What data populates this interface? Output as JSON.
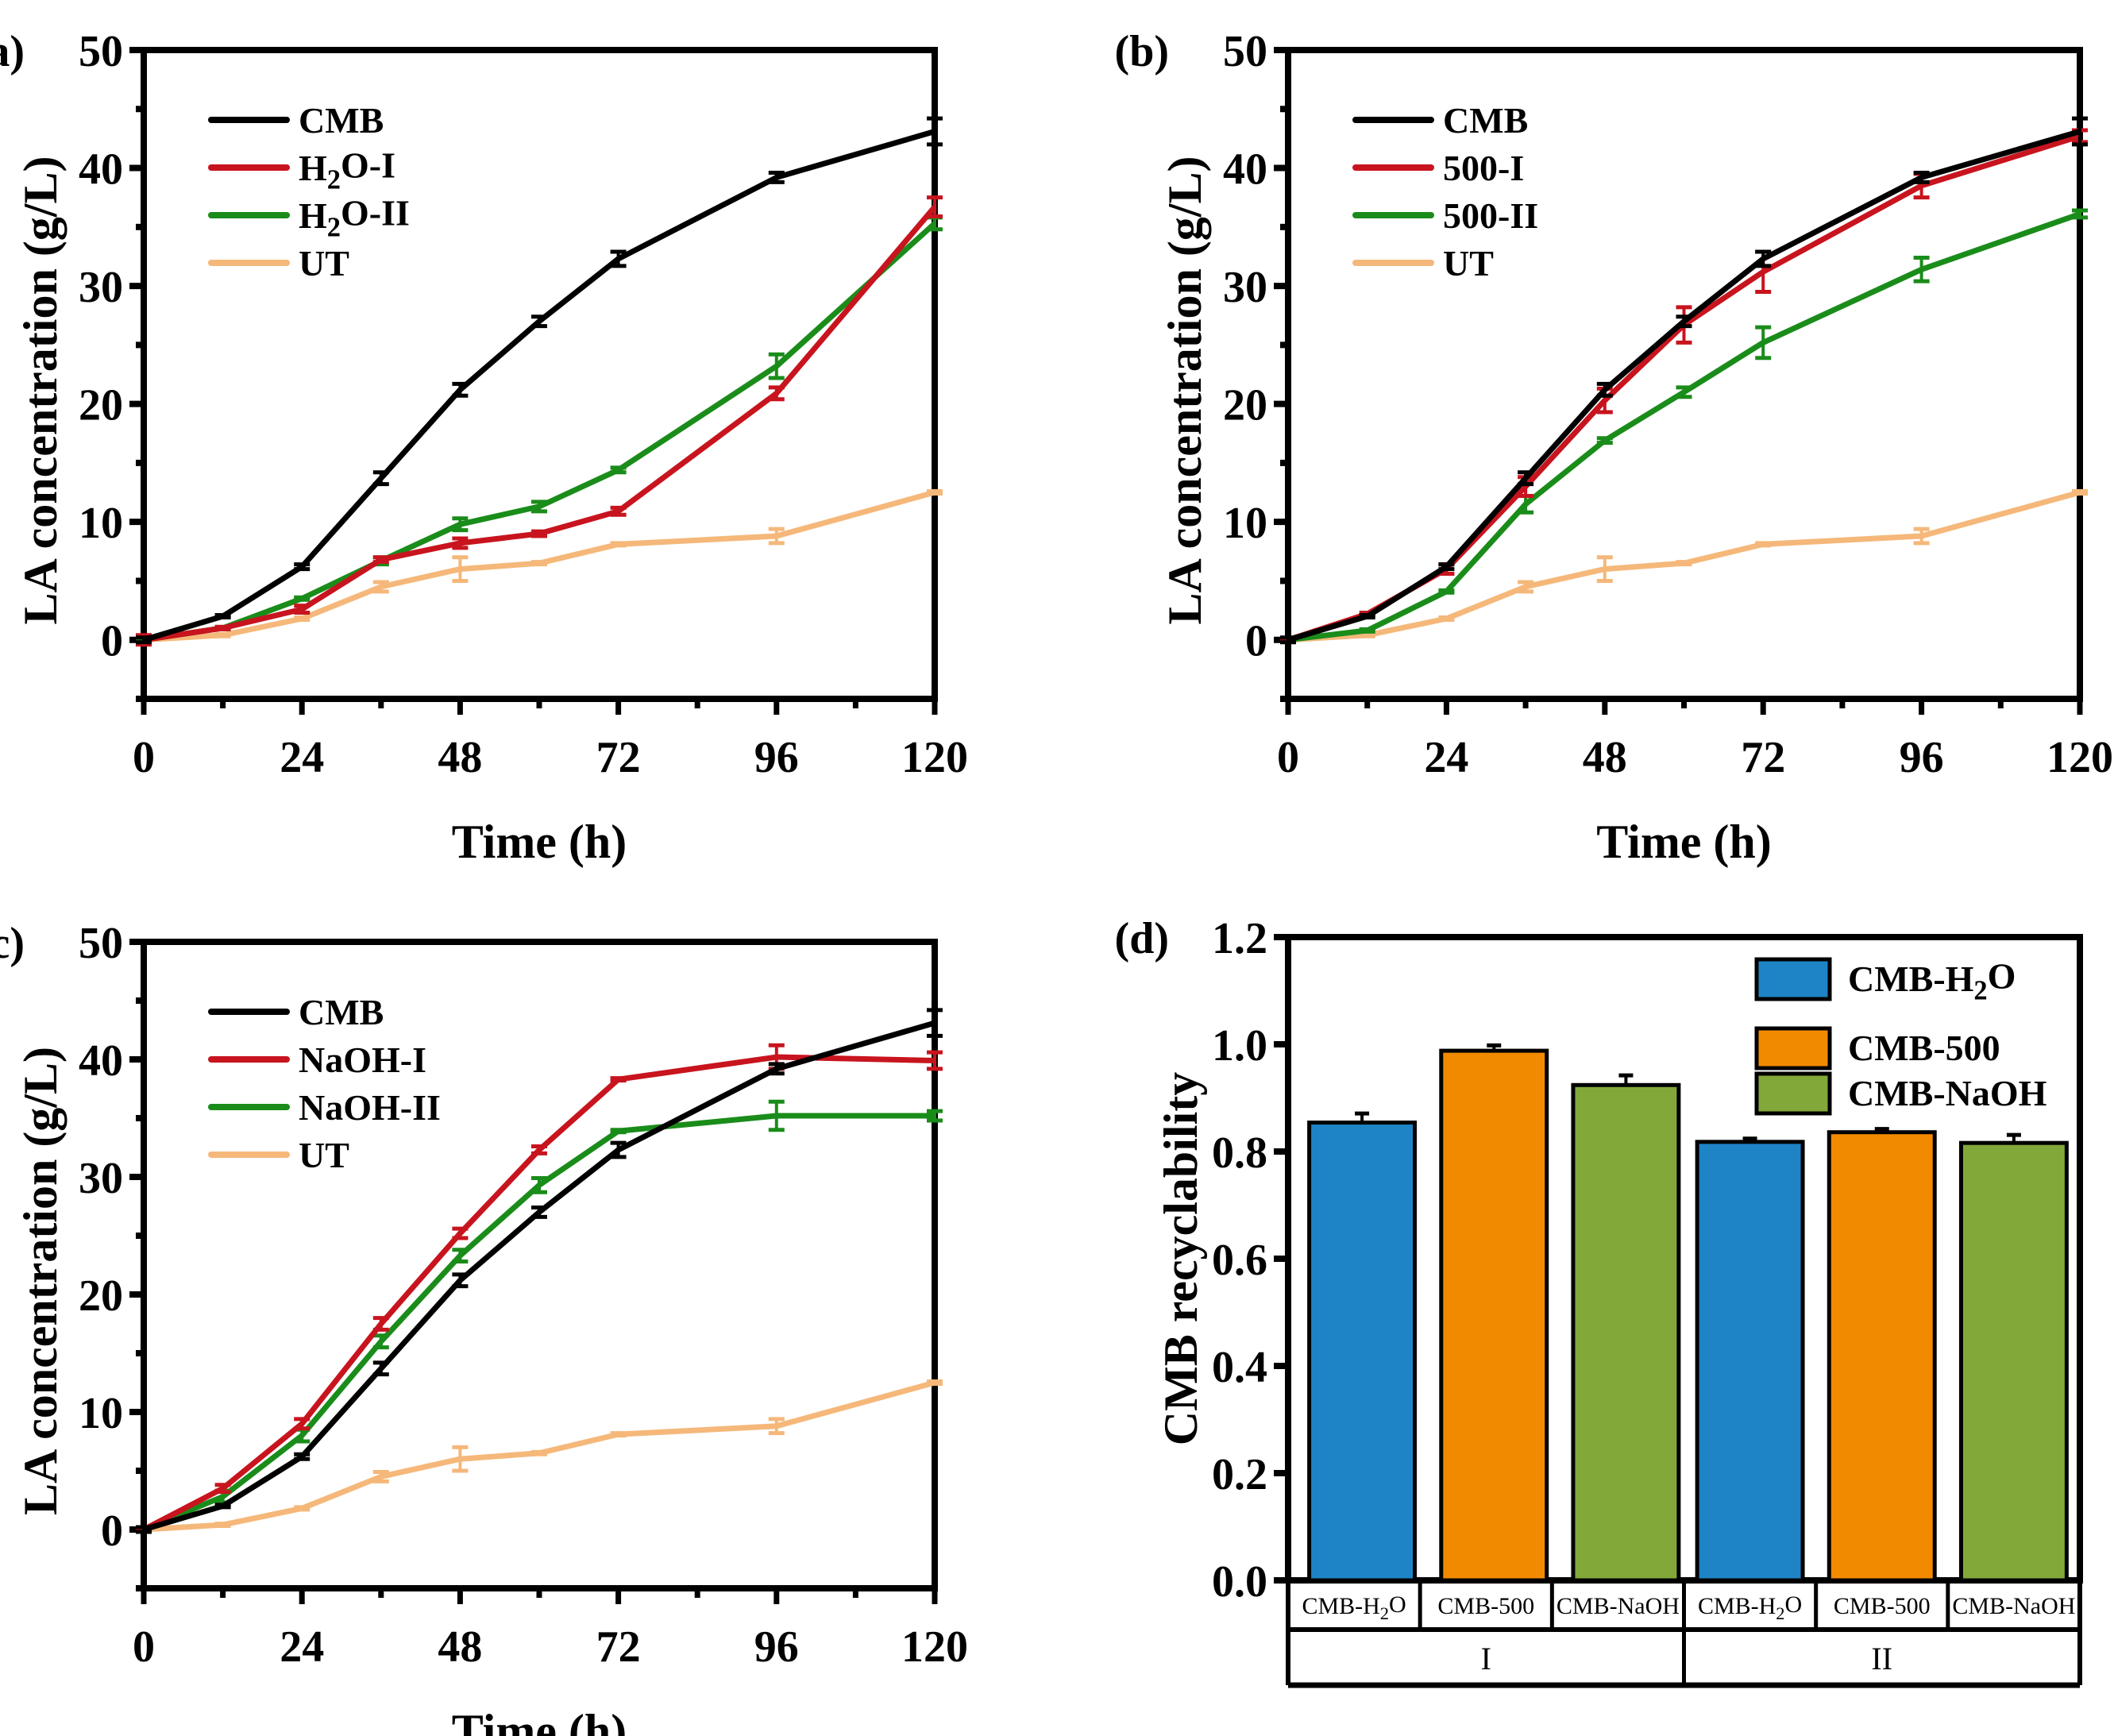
{
  "figure": {
    "panels": [
      "(a)",
      "(b)",
      "(c)",
      "(d)"
    ]
  },
  "chart_data": [
    {
      "id": "a",
      "panel_label": "(a)",
      "type": "line",
      "xlabel": "Time (h)",
      "ylabel": "LA concentration (g/L)",
      "xlim": [
        0,
        120
      ],
      "ylim": [
        -5,
        50
      ],
      "xticks": [
        0,
        24,
        48,
        72,
        96,
        120
      ],
      "yticks": [
        0,
        10,
        20,
        30,
        40,
        50
      ],
      "grid": false,
      "legend_position": "top-left",
      "x": [
        0,
        12,
        24,
        36,
        48,
        60,
        72,
        96,
        120
      ],
      "series": [
        {
          "name": "CMB",
          "color": "#000000",
          "values": [
            0,
            2.0,
            6.2,
            13.7,
            21.2,
            27.0,
            32.3,
            39.2,
            43.1
          ],
          "errors": [
            0.2,
            0.1,
            0.2,
            0.5,
            0.5,
            0.4,
            0.6,
            0.4,
            1.1
          ]
        },
        {
          "name": "H2O-I",
          "color": "#C8141E",
          "values": [
            0,
            1.0,
            2.6,
            6.8,
            8.2,
            9.0,
            10.9,
            20.9,
            36.7
          ],
          "errors": [
            0.4,
            0.1,
            0.3,
            0.2,
            0.4,
            0.2,
            0.3,
            0.5,
            0.8
          ]
        },
        {
          "name": "H2O-II",
          "color": "#1A8C1A",
          "values": [
            0,
            1.0,
            3.5,
            6.7,
            9.8,
            11.3,
            14.4,
            23.2,
            35.3
          ],
          "errors": [
            0.1,
            0.1,
            0.1,
            0.3,
            0.5,
            0.4,
            0.2,
            1.0,
            0.5
          ]
        },
        {
          "name": "UT",
          "color": "#F5B87A",
          "values": [
            0,
            0.4,
            1.8,
            4.5,
            6.0,
            6.5,
            8.1,
            8.8,
            12.5
          ],
          "errors": [
            0.1,
            0.1,
            0.1,
            0.4,
            1.0,
            0.1,
            0.1,
            0.6,
            0.1
          ]
        }
      ]
    },
    {
      "id": "b",
      "panel_label": "(b)",
      "type": "line",
      "xlabel": "Time (h)",
      "ylabel": "LA concentration (g/L)",
      "xlim": [
        0,
        120
      ],
      "ylim": [
        -5,
        50
      ],
      "xticks": [
        0,
        24,
        48,
        72,
        96,
        120
      ],
      "yticks": [
        0,
        10,
        20,
        30,
        40,
        50
      ],
      "grid": false,
      "legend_position": "top-left",
      "x": [
        0,
        12,
        24,
        36,
        48,
        60,
        72,
        96,
        120
      ],
      "series": [
        {
          "name": "CMB",
          "color": "#000000",
          "values": [
            0,
            2.0,
            6.2,
            13.7,
            21.2,
            27.0,
            32.3,
            39.2,
            43.1
          ],
          "errors": [
            0.2,
            0.1,
            0.2,
            0.5,
            0.5,
            0.4,
            0.6,
            0.4,
            1.1
          ]
        },
        {
          "name": "500-I",
          "color": "#C8141E",
          "values": [
            0,
            2.2,
            6.0,
            13.0,
            20.3,
            26.7,
            31.2,
            38.5,
            42.7
          ],
          "errors": [
            0.1,
            0.1,
            0.4,
            0.8,
            1.0,
            1.5,
            1.7,
            1.0,
            0.5
          ]
        },
        {
          "name": "500-II",
          "color": "#1A8C1A",
          "values": [
            0,
            0.8,
            4.1,
            11.5,
            16.9,
            21.0,
            25.2,
            31.4,
            36.1
          ],
          "errors": [
            0.1,
            0.1,
            0.1,
            0.7,
            0.2,
            0.4,
            1.3,
            1.0,
            0.3
          ]
        },
        {
          "name": "UT",
          "color": "#F5B87A",
          "values": [
            0,
            0.4,
            1.8,
            4.5,
            6.0,
            6.5,
            8.1,
            8.8,
            12.5
          ],
          "errors": [
            0.1,
            0.1,
            0.1,
            0.4,
            1.0,
            0.1,
            0.1,
            0.6,
            0.1
          ]
        }
      ]
    },
    {
      "id": "c",
      "panel_label": "(c)",
      "type": "line",
      "xlabel": "Time (h)",
      "ylabel": "LA concentration (g/L)",
      "xlim": [
        0,
        120
      ],
      "ylim": [
        -5,
        50
      ],
      "xticks": [
        0,
        24,
        48,
        72,
        96,
        120
      ],
      "yticks": [
        0,
        10,
        20,
        30,
        40,
        50
      ],
      "grid": false,
      "legend_position": "top-left",
      "x": [
        0,
        12,
        24,
        36,
        48,
        60,
        72,
        96,
        120
      ],
      "series": [
        {
          "name": "CMB",
          "color": "#000000",
          "values": [
            0,
            2.0,
            6.2,
            13.7,
            21.2,
            27.0,
            32.3,
            39.2,
            43.1
          ],
          "errors": [
            0.2,
            0.1,
            0.2,
            0.5,
            0.5,
            0.4,
            0.6,
            0.4,
            1.1
          ]
        },
        {
          "name": "NaOH-I",
          "color": "#C8141E",
          "values": [
            0,
            3.5,
            9.0,
            17.5,
            25.2,
            32.3,
            38.3,
            40.2,
            39.9
          ],
          "errors": [
            0.1,
            0.3,
            0.4,
            0.5,
            0.4,
            0.3,
            0.1,
            1.0,
            0.7
          ]
        },
        {
          "name": "NaOH-II",
          "color": "#1A8C1A",
          "values": [
            0,
            2.8,
            8.0,
            16.0,
            23.3,
            29.3,
            33.9,
            35.2,
            35.2
          ],
          "errors": [
            0.1,
            0.5,
            0.5,
            0.5,
            0.5,
            0.6,
            0.1,
            1.2,
            0.4
          ]
        },
        {
          "name": "UT",
          "color": "#F5B87A",
          "values": [
            0,
            0.4,
            1.8,
            4.5,
            6.0,
            6.5,
            8.1,
            8.8,
            12.5
          ],
          "errors": [
            0.1,
            0.1,
            0.1,
            0.4,
            1.0,
            0.1,
            0.1,
            0.6,
            0.1
          ]
        }
      ]
    },
    {
      "id": "d",
      "panel_label": "(d)",
      "type": "bar",
      "ylabel": "CMB recyclability",
      "ylim": [
        0,
        1.2
      ],
      "yticks": [
        0.0,
        0.2,
        0.4,
        0.6,
        0.8,
        1.0,
        1.2
      ],
      "ytick_labels": [
        "0.0",
        "0.2",
        "0.4",
        "0.6",
        "0.8",
        "1.0",
        "1.2"
      ],
      "grid": false,
      "legend_position": "top-right",
      "groups": [
        "I",
        "II"
      ],
      "categories": [
        "CMB-H2O",
        "CMB-500",
        "CMB-NaOH"
      ],
      "series": [
        {
          "name": "CMB-H2O",
          "color": "#1E84C6",
          "values": [
            0.854,
            0.818
          ],
          "errors": [
            0.017,
            0.006
          ]
        },
        {
          "name": "CMB-500",
          "color": "#F28A00",
          "values": [
            0.988,
            0.836
          ],
          "errors": [
            0.01,
            0.006
          ]
        },
        {
          "name": "CMB-NaOH",
          "color": "#82A83A",
          "values": [
            0.924,
            0.816
          ],
          "errors": [
            0.018,
            0.015
          ]
        }
      ]
    }
  ]
}
